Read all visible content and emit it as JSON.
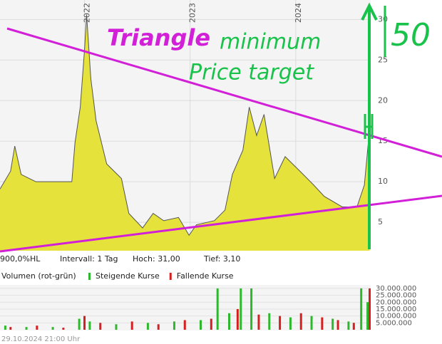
{
  "chart_data": [
    {
      "type": "area",
      "color": "#e6e23c",
      "x": [
        2021.2,
        2021.3,
        2021.34,
        2021.4,
        2021.54,
        2021.88,
        2021.91,
        2021.96,
        2022.0,
        2022.02,
        2022.06,
        2022.11,
        2022.21,
        2022.35,
        2022.42,
        2022.55,
        2022.65,
        2022.75,
        2022.89,
        2022.99,
        2023.06,
        2023.23,
        2023.33,
        2023.4,
        2023.5,
        2023.56,
        2023.63,
        2023.7,
        2023.8,
        2023.9,
        2024.04,
        2024.17,
        2024.27,
        2024.44,
        2024.58,
        2024.65,
        2024.7
      ],
      "values": [
        9.1,
        11.3,
        14.4,
        10.9,
        10.0,
        10.0,
        14.8,
        19.2,
        26.2,
        30.6,
        22.7,
        17.5,
        12.2,
        10.4,
        6.1,
        4.3,
        6.1,
        5.2,
        5.6,
        3.4,
        4.7,
        5.2,
        6.5,
        10.9,
        13.9,
        19.2,
        15.7,
        18.3,
        10.4,
        13.1,
        11.3,
        9.6,
        8.2,
        6.9,
        6.9,
        9.6,
        16.6
      ],
      "xlim": [
        2021.2,
        2024.71
      ],
      "ylim": [
        1.5,
        32.4
      ],
      "xticks": [
        2022,
        2023,
        2024
      ],
      "yticks": [
        5,
        10,
        15,
        20,
        25,
        30
      ],
      "stats": [
        "900,0%HL",
        "Intervall: 1 Tag",
        "Hoch: 31,00",
        "Tief: 3,10"
      ],
      "annotations": [
        "Triangle",
        "minimum",
        "Price target",
        "50"
      ]
    },
    {
      "type": "bar",
      "title": "Volumen (rot-grün)",
      "xlim": [
        2021.2,
        2024.71
      ],
      "ylim": [
        0,
        31000000
      ],
      "yticks": [
        {
          "value": 5000000,
          "label": "5.000.000"
        },
        {
          "value": 10000000,
          "label": "10.000.000"
        },
        {
          "value": 15000000,
          "label": "15.000.000"
        },
        {
          "value": 20000000,
          "label": "20.000.000"
        },
        {
          "value": 25000000,
          "label": "25.000.000"
        },
        {
          "value": 30000000,
          "label": "30.000.000"
        }
      ],
      "series": [
        {
          "name": "Steigende Kurse",
          "color": "#2db82d",
          "x": [
            2021.25,
            2021.45,
            2021.7,
            2021.95,
            2022.05,
            2022.3,
            2022.6,
            2022.85,
            2023.1,
            2023.26,
            2023.37,
            2023.48,
            2023.58,
            2023.75,
            2023.95,
            2024.15,
            2024.35,
            2024.5,
            2024.62,
            2024.68
          ],
          "values": [
            3000000,
            2000000,
            2000000,
            8000000,
            6000000,
            4000000,
            5000000,
            6000000,
            7000000,
            30000000,
            12000000,
            30000000,
            30000000,
            12000000,
            9000000,
            10000000,
            8000000,
            6000000,
            30000000,
            20000000
          ]
        },
        {
          "name": "Fallende Kurse",
          "color": "#d42020",
          "x": [
            2021.3,
            2021.55,
            2021.8,
            2022.0,
            2022.15,
            2022.45,
            2022.7,
            2022.95,
            2023.2,
            2023.45,
            2023.65,
            2023.85,
            2024.05,
            2024.25,
            2024.4,
            2024.55,
            2024.7
          ],
          "values": [
            2000000,
            3000000,
            1500000,
            10000000,
            5000000,
            6000000,
            4000000,
            7000000,
            8000000,
            15000000,
            11000000,
            10000000,
            12000000,
            9000000,
            7000000,
            5000000,
            30000000
          ]
        }
      ]
    }
  ],
  "footer": "29.10.2024 21:00 Uhr"
}
